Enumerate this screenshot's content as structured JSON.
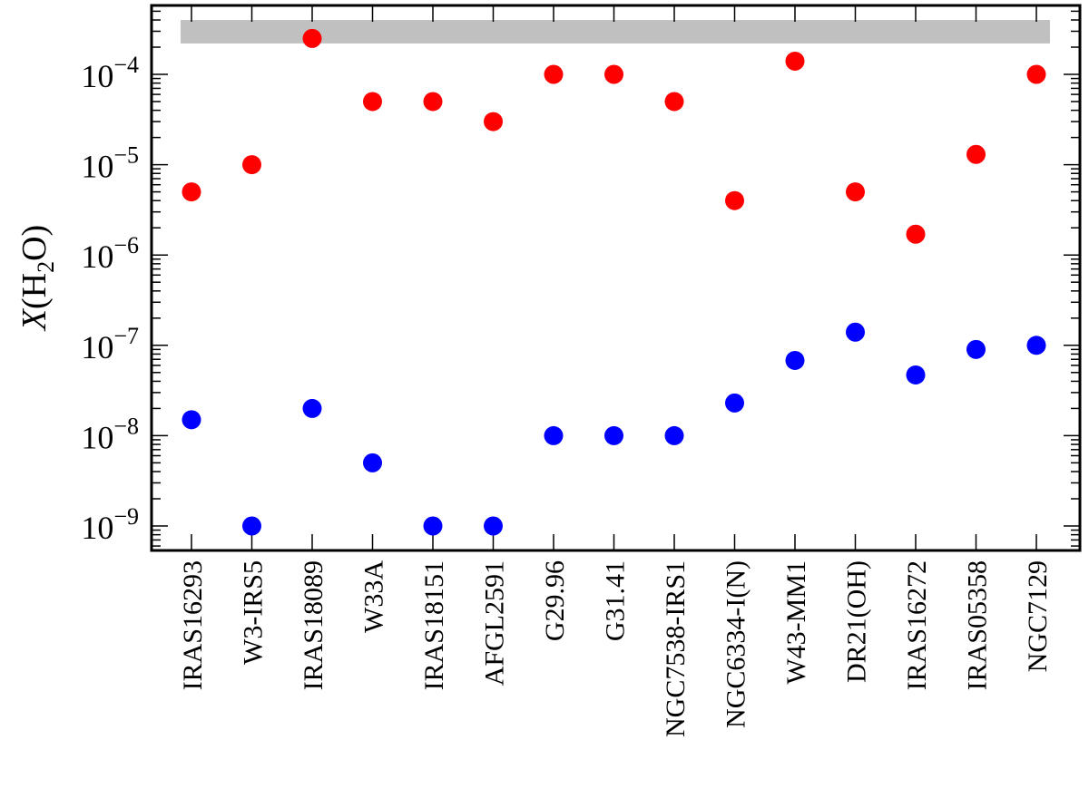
{
  "chart_data": {
    "type": "scatter",
    "ylabel": "X(H2O)",
    "ylabel_parts": {
      "var": "X",
      "open": "(H",
      "sub": "2",
      "close": "O)"
    },
    "yscale": "log",
    "ylim": [
      5e-10,
      0.0006
    ],
    "yticks": [
      {
        "value": 1e-09,
        "label": "10",
        "exp": "−9"
      },
      {
        "value": 1e-08,
        "label": "10",
        "exp": "−8"
      },
      {
        "value": 1e-07,
        "label": "10",
        "exp": "−7"
      },
      {
        "value": 1e-06,
        "label": "10",
        "exp": "−6"
      },
      {
        "value": 1e-05,
        "label": "10",
        "exp": "−5"
      },
      {
        "value": 0.0001,
        "label": "10",
        "exp": "−4"
      }
    ],
    "categories": [
      "IRAS16293",
      "W3-IRS5",
      "IRAS18089",
      "W33A",
      "IRAS18151",
      "AFGL2591",
      "G29.96",
      "G31.41",
      "NGC7538-IRS1",
      "NGC6334-I(N)",
      "W43-MM1",
      "DR21(OH)",
      "IRAS16272",
      "IRAS05358",
      "NGC7129"
    ],
    "series": [
      {
        "color": "#ff0000",
        "values": [
          5e-06,
          1e-05,
          0.00025,
          5e-05,
          5e-05,
          3e-05,
          0.0001,
          0.0001,
          5e-05,
          4e-06,
          0.00014,
          5e-06,
          1.7e-06,
          1.3e-05,
          0.0001
        ]
      },
      {
        "color": "#0000ff",
        "values": [
          1.5e-08,
          1e-09,
          2e-08,
          5e-09,
          1e-09,
          1e-09,
          1e-08,
          1e-08,
          1e-08,
          2.3e-08,
          6.8e-08,
          1.4e-07,
          4.7e-08,
          9e-08,
          1e-07
        ]
      }
    ],
    "band": {
      "color": "#c0c0c0",
      "range": [
        0.00022,
        0.0004
      ]
    },
    "grid": false,
    "legend": "none"
  }
}
